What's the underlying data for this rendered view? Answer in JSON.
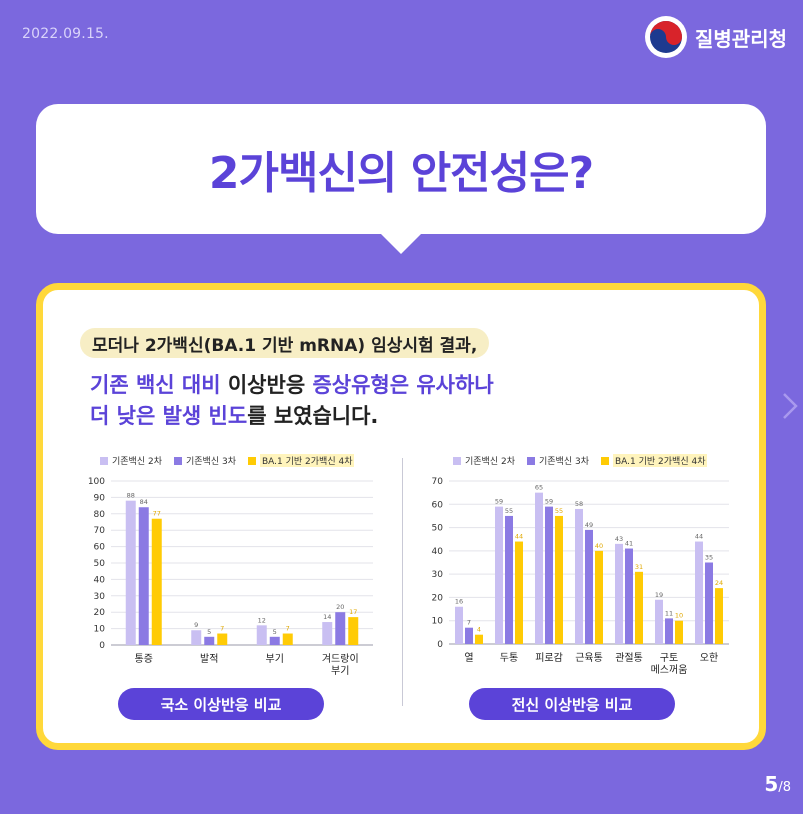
{
  "header": {
    "date": "2022.09.15.",
    "org_name": "질병관리청"
  },
  "headline": "2가백신의 안전성은?",
  "card": {
    "subhead": "모더나 2가백신(BA.1 기반 mRNA) 임상시험 결과,",
    "intro_line1": {
      "p1": "기존 백신 대비",
      "p2": " 이상반응 ",
      "p3": "증상유형은 유사하나"
    },
    "intro_line2": {
      "p1": "더 낮은 발생 빈도",
      "p2": "를 보였습니다."
    }
  },
  "legend": [
    "기존백신 2차",
    "기존백신 3차",
    "BA.1 기반 2가백신 4차"
  ],
  "colors": {
    "series": [
      "#c9bff2",
      "#8b7ae3",
      "#ffcb05"
    ],
    "accent": "#5b43d8",
    "card_border": "#ffd83a",
    "background": "#7b68de"
  },
  "chart_data": [
    {
      "type": "bar",
      "categories": [
        "통증",
        "발적",
        "부기",
        "겨드랑이\n부기"
      ],
      "series": [
        {
          "name": "기존백신 2차",
          "values": [
            88,
            9,
            12,
            14
          ]
        },
        {
          "name": "기존백신 3차",
          "values": [
            84,
            5,
            5,
            20
          ]
        },
        {
          "name": "BA.1 기반 2가백신 4차",
          "values": [
            77,
            7,
            7,
            17
          ]
        }
      ],
      "ylim": [
        0,
        100
      ],
      "yticks": [
        0,
        10,
        20,
        30,
        40,
        50,
        60,
        70,
        80,
        90,
        100
      ],
      "caption": "국소 이상반응 비교",
      "legend": "top",
      "grid": true
    },
    {
      "type": "bar",
      "categories": [
        "열",
        "두통",
        "피로감",
        "근육통",
        "관절통",
        "구토\n메스꺼움",
        "오한"
      ],
      "series": [
        {
          "name": "기존백신 2차",
          "values": [
            16,
            59,
            65,
            58,
            43,
            19,
            44
          ]
        },
        {
          "name": "기존백신 3차",
          "values": [
            7,
            55,
            59,
            49,
            41,
            11,
            35
          ]
        },
        {
          "name": "BA.1 기반 2가백신 4차",
          "values": [
            4,
            44,
            55,
            40,
            31,
            10,
            24
          ]
        }
      ],
      "ylim": [
        0,
        70
      ],
      "yticks": [
        0,
        10,
        20,
        30,
        40,
        50,
        60,
        70
      ],
      "caption": "전신 이상반응 비교",
      "legend": "top",
      "grid": true
    }
  ],
  "pagination": {
    "current": "5",
    "total": "/8"
  }
}
